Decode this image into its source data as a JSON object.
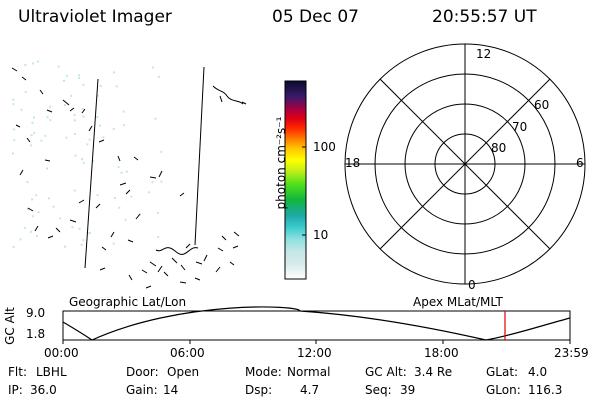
{
  "header": {
    "instrument": "Ultraviolet Imager",
    "date": "05 Dec 07",
    "time": "20:55:57 UT"
  },
  "left_panel_label": "Geographic Lat/Lon",
  "right_panel_label": "Apex MLat/MLT",
  "colorbar": {
    "label": "photon cm⁻²s⁻¹",
    "ticks": [
      "100",
      "10"
    ]
  },
  "polar_plot": {
    "mlt_labels": {
      "top": "12",
      "left": "18",
      "right": "6",
      "bottom": "0"
    },
    "lat_rings": [
      "60",
      "70",
      "80"
    ]
  },
  "altitude_plot": {
    "ylabel": "GC Alt",
    "yticks": [
      "9.0",
      "1.8"
    ],
    "xticks": [
      "00:00",
      "06:00",
      "12:00",
      "18:00",
      "23:59"
    ]
  },
  "status": {
    "flt_label": "Flt:",
    "flt_value": "LBHL",
    "door_label": "Door:",
    "door_value": "Open",
    "mode_label": "Mode:",
    "mode_value": "Normal",
    "gcalt_label": "GC Alt:",
    "gcalt_value": "3.4 Re",
    "glat_label": "GLat:",
    "glat_value": "4.0",
    "ip_label": "IP:",
    "ip_value": "36.0",
    "gain_label": "Gain:",
    "gain_value": "14",
    "dsp_label": "Dsp:",
    "dsp_value": "4.7",
    "seq_label": "Seq:",
    "seq_value": "39",
    "glon_label": "GLon:",
    "glon_value": "116.3"
  }
}
